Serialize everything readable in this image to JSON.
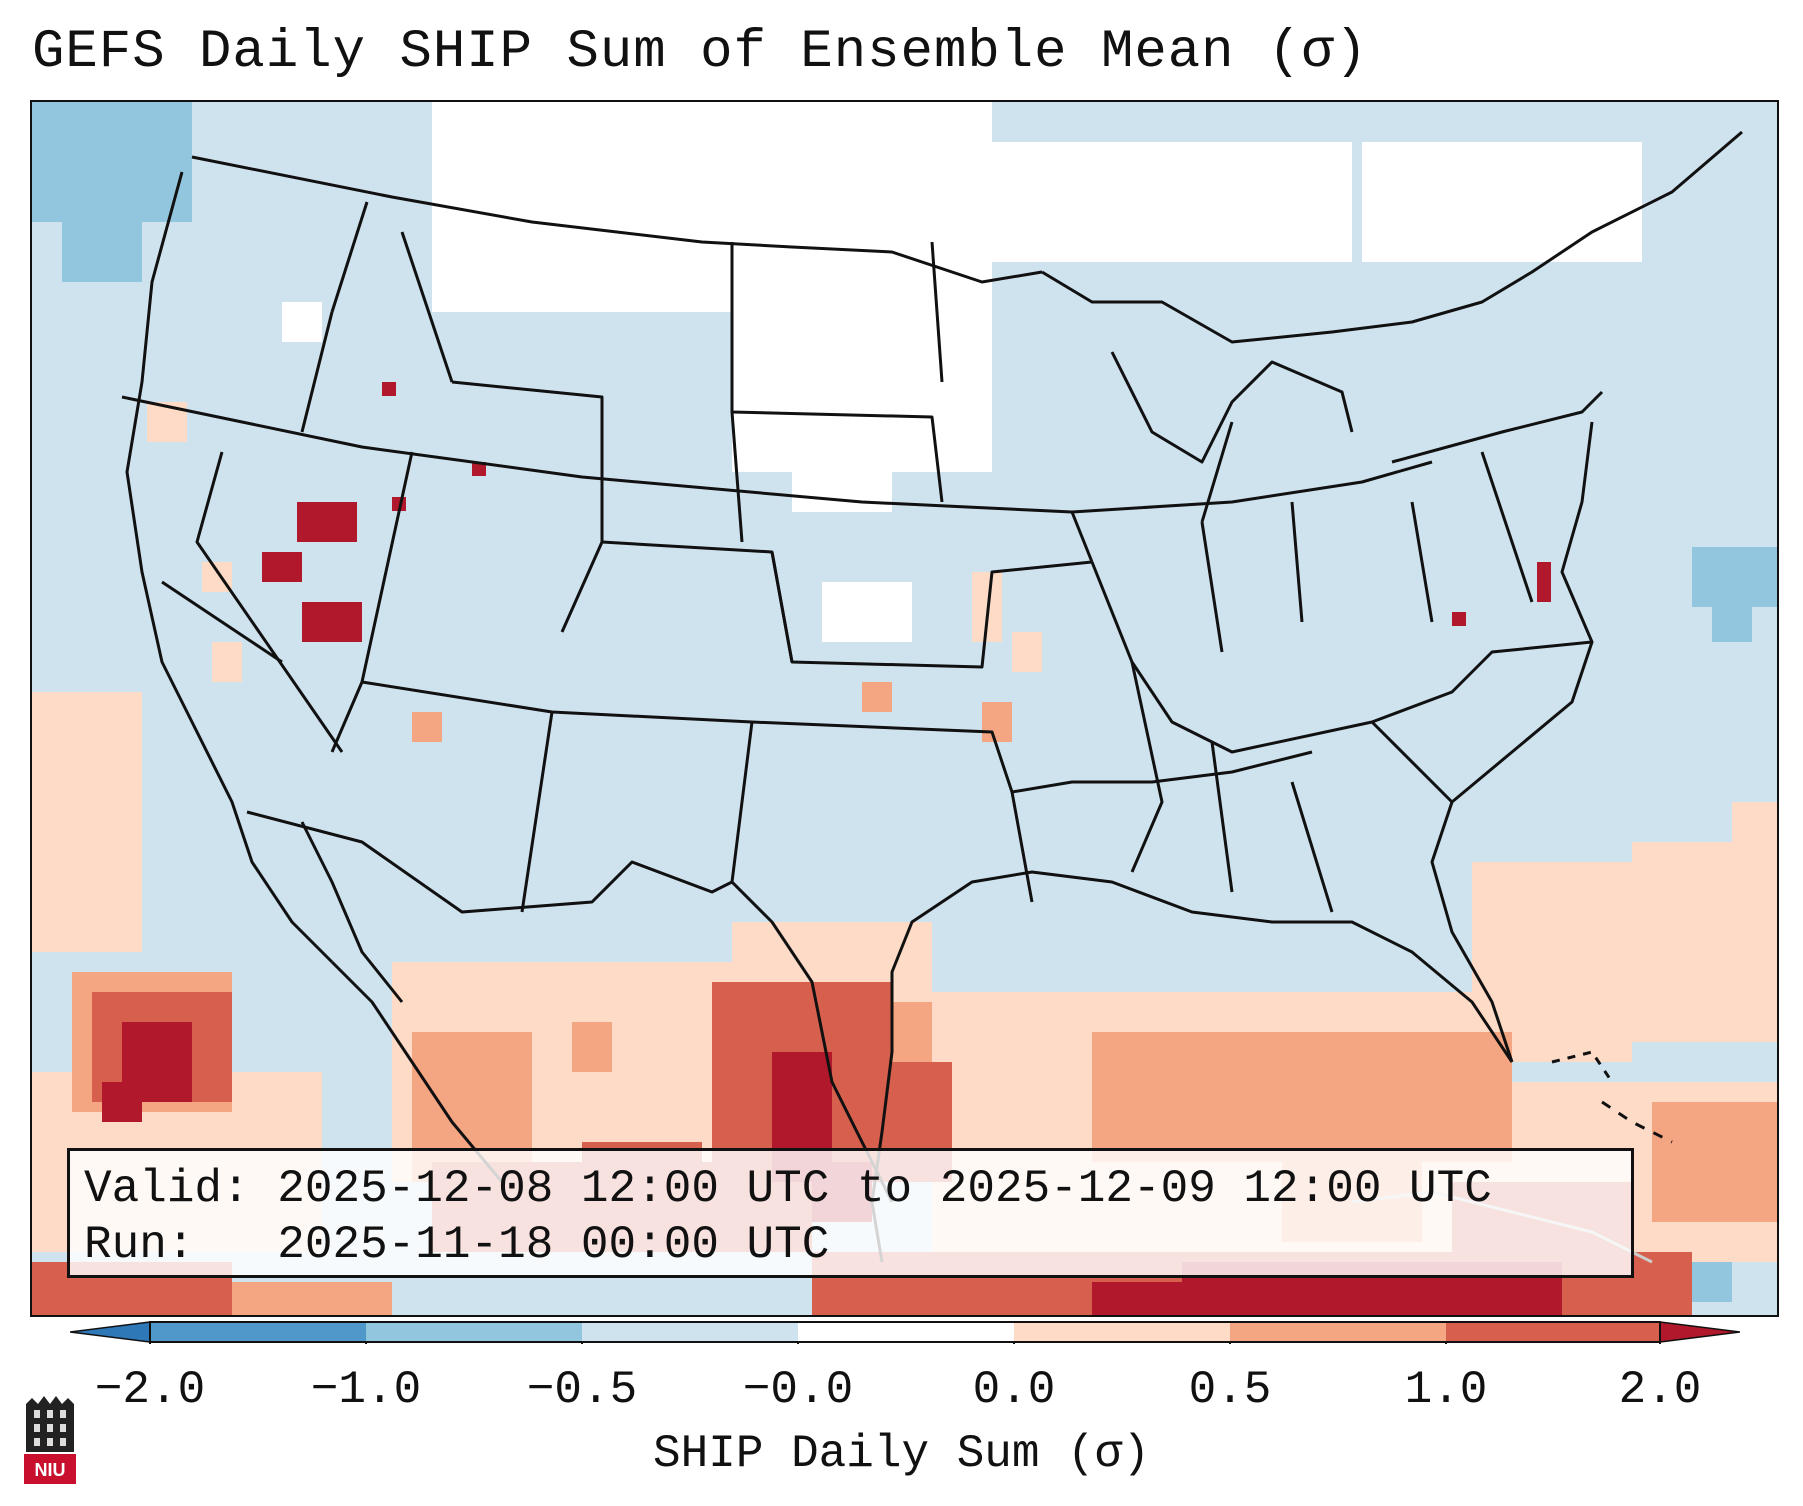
{
  "title": "GEFS Daily SHIP Sum of Ensemble Mean (σ)",
  "info": {
    "valid_label": "Valid:",
    "valid_value": "2025-12-08 12:00 UTC to 2025-12-09 12:00 UTC",
    "run_label": "Run:",
    "run_value": "2025-11-18 00:00 UTC"
  },
  "colorbar": {
    "label": "SHIP Daily Sum (σ)",
    "ticks": [
      "−2.0",
      "−1.0",
      "−0.5",
      "−0.0",
      "0.0",
      "0.5",
      "1.0",
      "2.0"
    ],
    "colors": {
      "below_extend": "#2f78b8",
      "bin_m2_m1": "#4f98c9",
      "bin_m1_m05": "#92c5de",
      "bin_m05_m0": "#cfe3ef",
      "bin_zero": "#ffffff",
      "bin_0_05": "#fddbc7",
      "bin_05_1": "#f4a582",
      "bin_1_2": "#d6604d",
      "above_extend": "#b2182b"
    }
  },
  "logo": {
    "text": "NIU"
  }
}
